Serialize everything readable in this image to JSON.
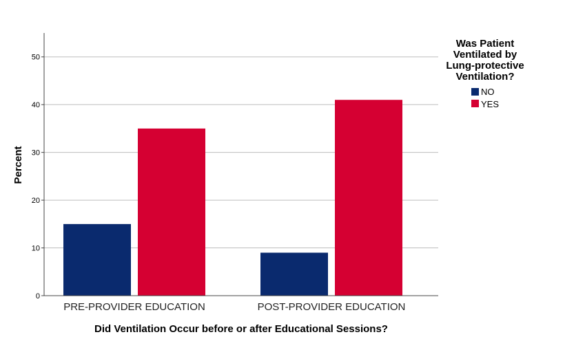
{
  "chart_data": {
    "type": "bar",
    "categories": [
      "PRE-PROVIDER EDUCATION",
      "POST-PROVIDER EDUCATION"
    ],
    "series": [
      {
        "name": "NO",
        "values": [
          15,
          9
        ],
        "color": "#0a2a6e"
      },
      {
        "name": "YES",
        "values": [
          35,
          41
        ],
        "color": "#d50032"
      }
    ],
    "title": "",
    "xlabel": "Did Ventilation Occur before or after Educational Sessions?",
    "ylabel": "Percent",
    "ylim": [
      0,
      55
    ],
    "yticks": [
      0,
      10,
      20,
      30,
      40,
      50
    ],
    "grid": true,
    "legend": {
      "title_lines": [
        "Was Patient",
        "Ventilated by",
        "Lung-protective",
        "Ventilation?"
      ],
      "placement": "top-right"
    }
  }
}
